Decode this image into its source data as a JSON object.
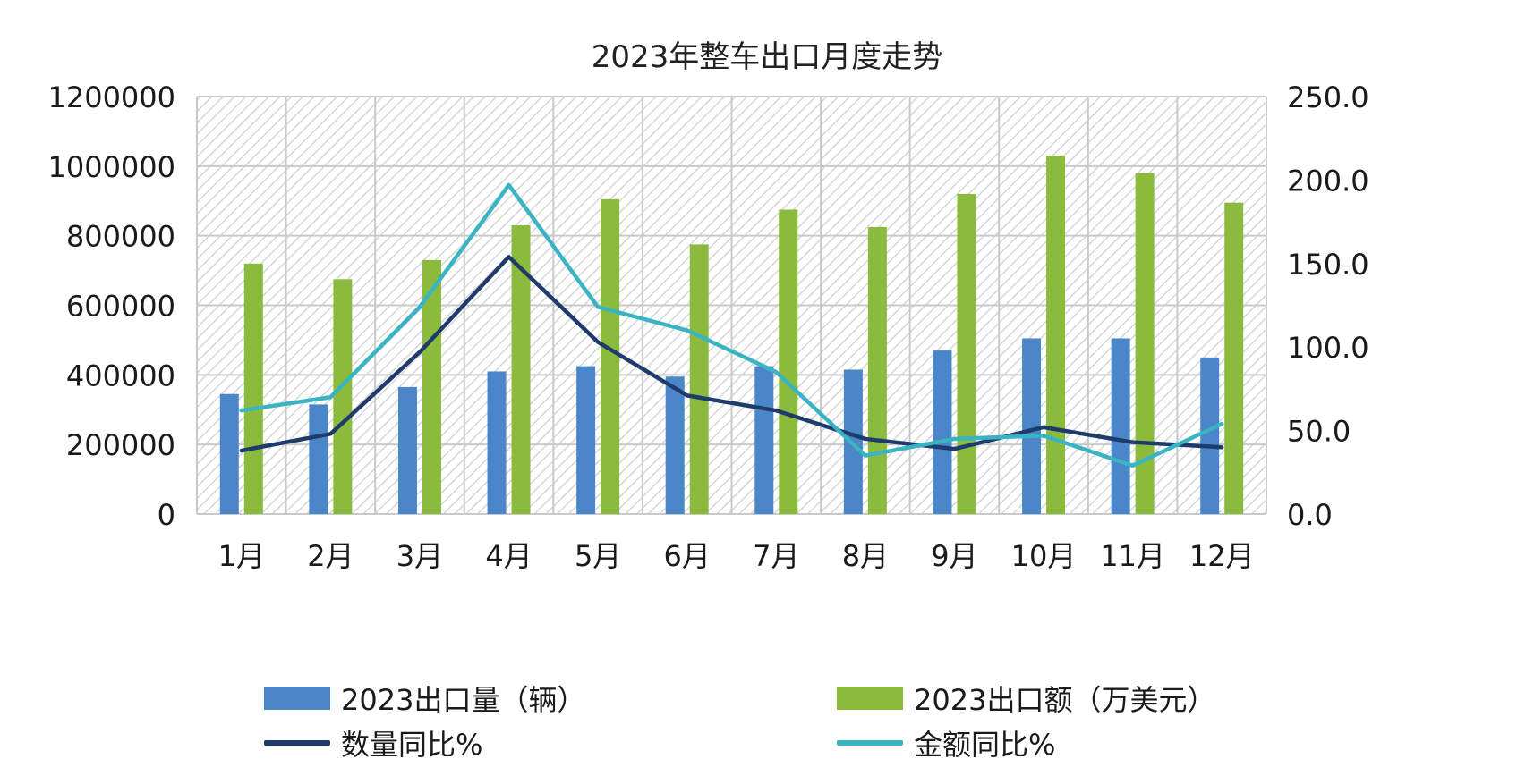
{
  "chart_data": {
    "type": "bar",
    "title": "2023年整车出口月度走势",
    "categories": [
      "1月",
      "2月",
      "3月",
      "4月",
      "5月",
      "6月",
      "7月",
      "8月",
      "9月",
      "10月",
      "11月",
      "12月"
    ],
    "y_left": {
      "ticks": [
        "0",
        "200000",
        "400000",
        "600000",
        "800000",
        "1000000",
        "1200000"
      ],
      "range": [
        0,
        1200000
      ]
    },
    "y_right": {
      "ticks": [
        "0.0",
        "50.0",
        "100.0",
        "150.0",
        "200.0",
        "250.0"
      ],
      "range": [
        0,
        250
      ]
    },
    "series": [
      {
        "name": "2023出口量（辆）",
        "type": "bar",
        "axis": "left",
        "color": "#4a86c8",
        "values": [
          345000,
          315000,
          365000,
          410000,
          425000,
          395000,
          425000,
          415000,
          470000,
          505000,
          505000,
          450000
        ]
      },
      {
        "name": "2023出口额（万美元）",
        "type": "bar",
        "axis": "left",
        "color": "#8bbb3c",
        "values": [
          720000,
          675000,
          730000,
          830000,
          905000,
          775000,
          875000,
          825000,
          920000,
          1030000,
          980000,
          895000
        ]
      },
      {
        "name": "数量同比%",
        "type": "line",
        "axis": "right",
        "color": "#1f3b6b",
        "values": [
          38,
          48,
          97,
          154,
          103,
          71,
          62,
          45,
          39,
          52,
          43,
          40
        ]
      },
      {
        "name": "金额同比%",
        "type": "line",
        "axis": "right",
        "color": "#3ab3c3",
        "values": [
          62,
          70,
          124,
          197,
          124,
          110,
          85,
          35,
          45,
          47,
          29,
          54
        ]
      }
    ],
    "grid": true,
    "legend_position": "bottom"
  }
}
